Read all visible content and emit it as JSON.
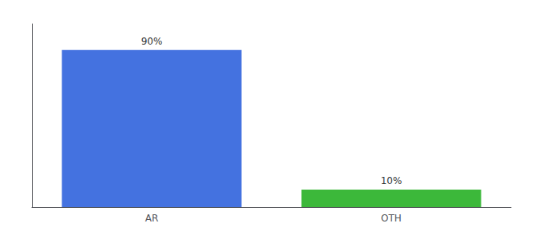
{
  "chart_data": {
    "type": "bar",
    "categories": [
      "AR",
      "OTH"
    ],
    "values": [
      90,
      10
    ],
    "value_labels": [
      "90%",
      "10%"
    ],
    "colors": [
      "#4472e0",
      "#3cb83a"
    ],
    "ylim": [
      0,
      105
    ],
    "yticks": [],
    "grid": false,
    "data_labels": true,
    "tick_labels": "x"
  }
}
